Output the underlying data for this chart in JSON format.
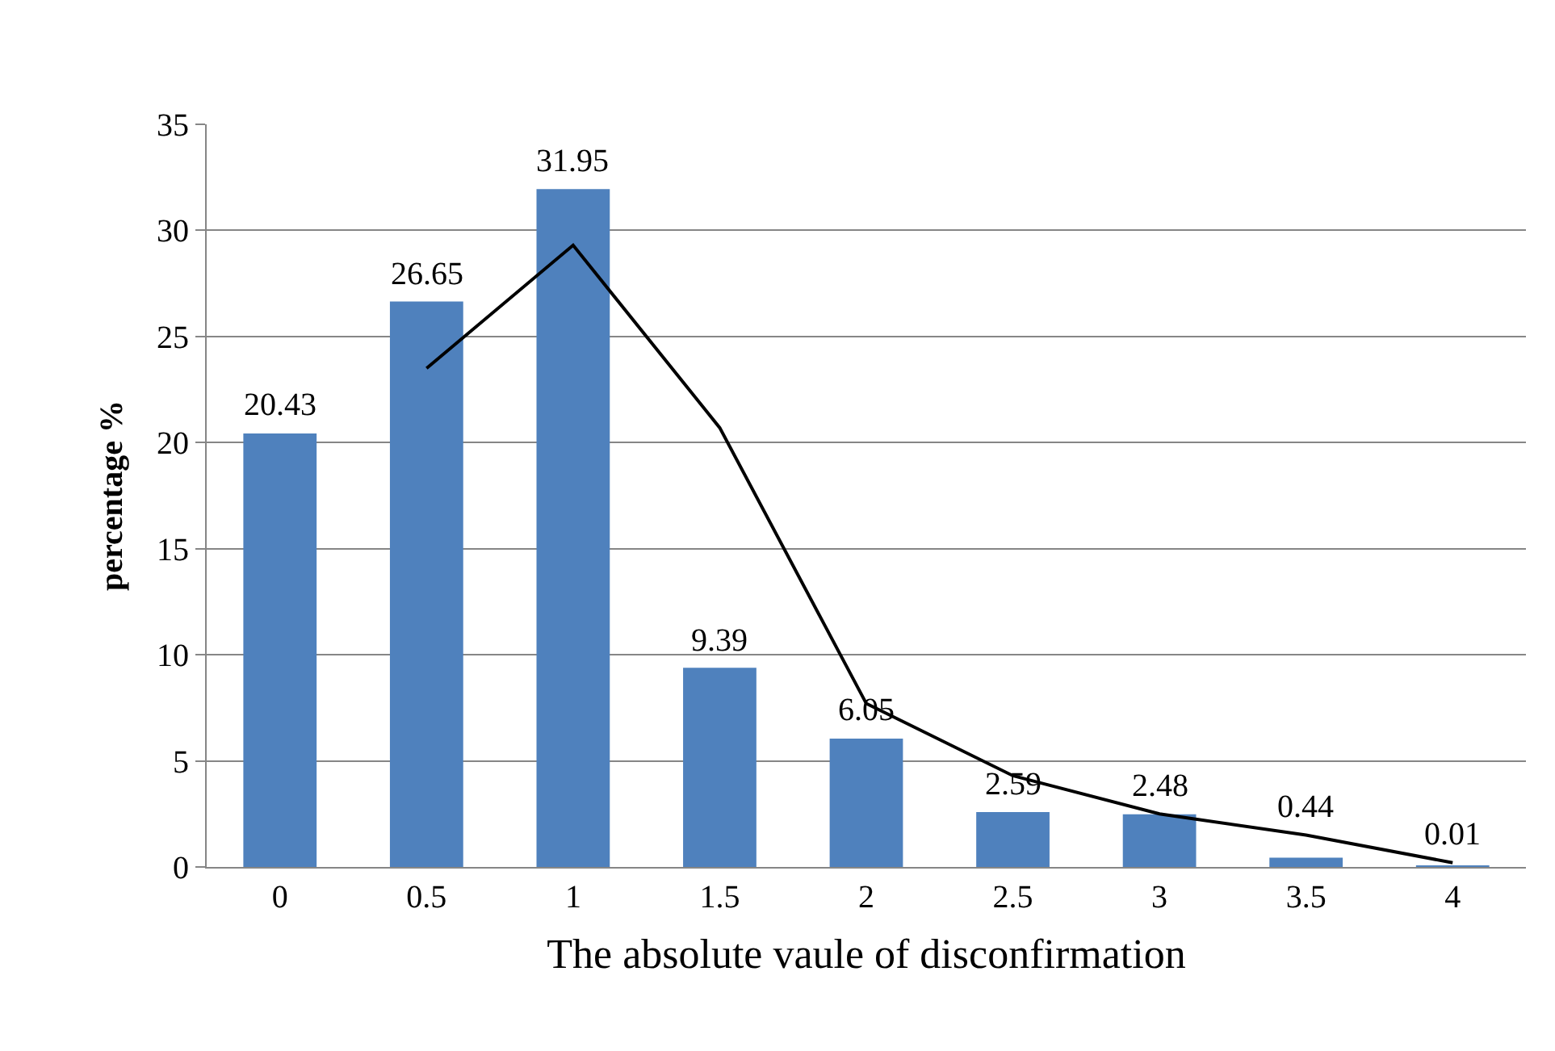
{
  "chart_data": {
    "type": "bar",
    "categories": [
      "0",
      "0.5",
      "1",
      "1.5",
      "2",
      "2.5",
      "3",
      "3.5",
      "4"
    ],
    "series": [
      {
        "color": "#4f81bd",
        "values": [
          20.43,
          26.65,
          31.95,
          9.39,
          6.05,
          2.59,
          2.48,
          0.44,
          0.01
        ],
        "value_labels": [
          "20.43",
          "26.65",
          "31.95",
          "9.39",
          "6.05",
          "2.59",
          "2.48",
          "0.44",
          "0.01"
        ]
      },
      {
        "type": "line",
        "color": "#000000",
        "values": [
          null,
          23.5,
          29.3,
          20.7,
          7.7,
          4.3,
          2.5,
          1.5,
          0.2
        ],
        "marker": "none",
        "line_style": "solid"
      }
    ],
    "xlabel": "The absolute vaule of disconfirmation",
    "ylabel": "percentage %",
    "ylim": [
      0,
      35
    ],
    "yticks": [
      0,
      5,
      10,
      15,
      20,
      25,
      30,
      35
    ],
    "grid": "y",
    "legend": false
  }
}
